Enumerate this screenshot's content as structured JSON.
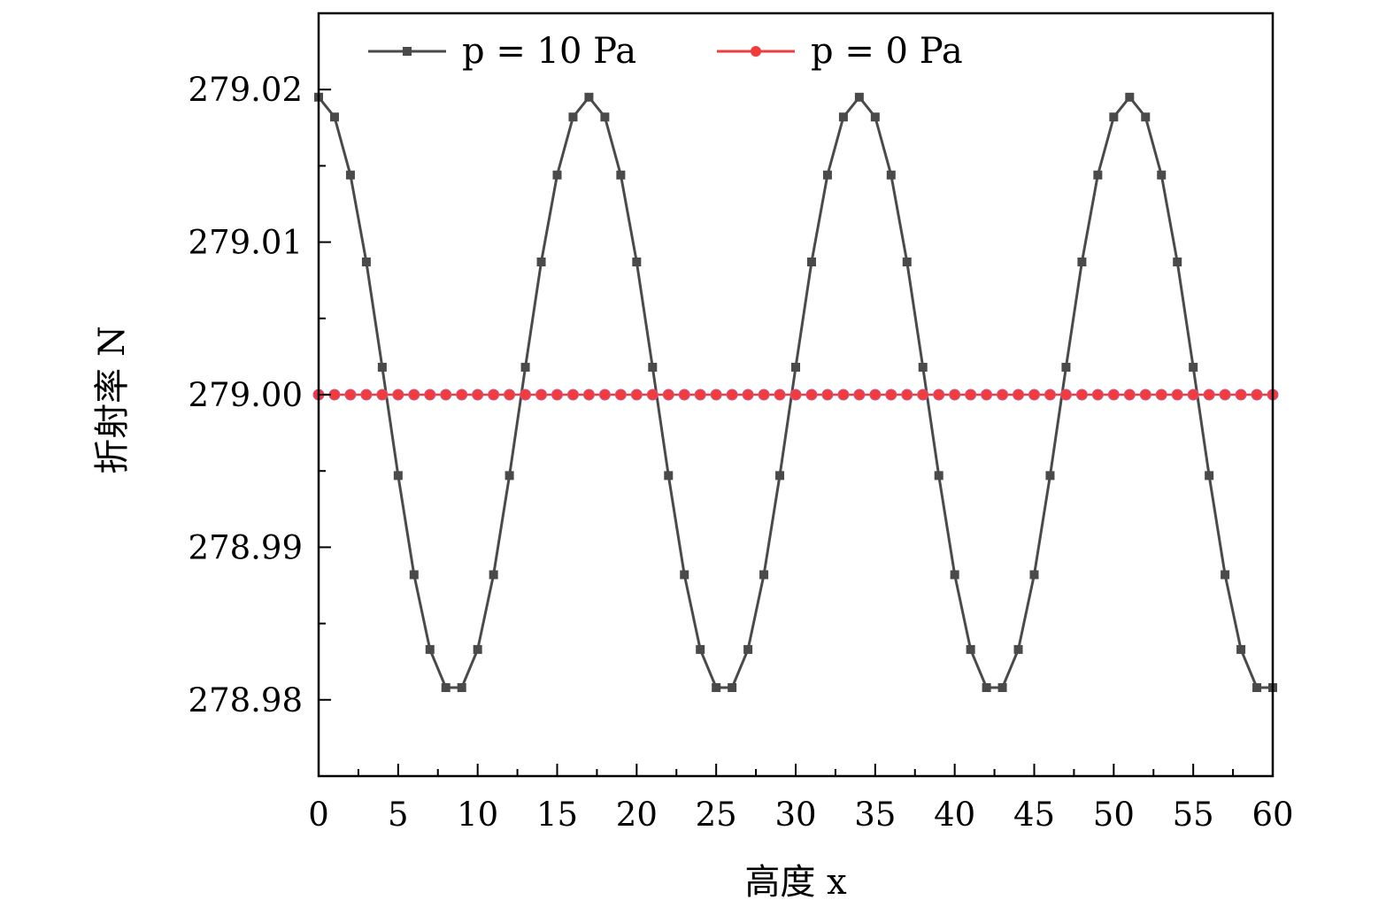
{
  "chart_data": {
    "type": "line",
    "xlabel": "高度 x",
    "ylabel": "折射率 N",
    "xlim": [
      0,
      60
    ],
    "ylim": [
      278.975,
      279.025
    ],
    "x_ticks": [
      0,
      5,
      10,
      15,
      20,
      25,
      30,
      35,
      40,
      45,
      50,
      55,
      60
    ],
    "x_tick_labels": [
      "0",
      "5",
      "10",
      "15",
      "20",
      "25",
      "30",
      "35",
      "40",
      "45",
      "50",
      "55",
      "60"
    ],
    "y_ticks": [
      278.98,
      278.99,
      279.0,
      279.01,
      279.02
    ],
    "y_tick_labels": [
      "278.98",
      "278.99",
      "279.00",
      "279.01",
      "279.02"
    ],
    "grid": false,
    "legend_position": "top",
    "x": [
      0,
      1,
      2,
      3,
      4,
      5,
      6,
      7,
      8,
      9,
      10,
      11,
      12,
      13,
      14,
      15,
      16,
      17,
      18,
      19,
      20,
      21,
      22,
      23,
      24,
      25,
      26,
      27,
      28,
      29,
      30,
      31,
      32,
      33,
      34,
      35,
      36,
      37,
      38,
      39,
      40,
      41,
      42,
      43,
      44,
      45,
      46,
      47,
      48,
      49,
      50,
      51,
      52,
      53,
      54,
      55,
      56,
      57,
      58,
      59,
      60
    ],
    "series": [
      {
        "name": "p = 10 Pa",
        "color": "#4a4a4a",
        "marker": "square",
        "values": [
          279.0195,
          279.0182,
          279.0144,
          279.0087,
          279.0018,
          278.9947,
          278.9882,
          278.9833,
          278.9808,
          278.9808,
          278.9833,
          278.9882,
          278.9947,
          279.0018,
          279.0087,
          279.0144,
          279.0182,
          279.0195,
          279.0182,
          279.0144,
          279.0087,
          279.0018,
          278.9947,
          278.9882,
          278.9833,
          278.9808,
          278.9808,
          278.9833,
          278.9882,
          278.9947,
          279.0018,
          279.0087,
          279.0144,
          279.0182,
          279.0195,
          279.0182,
          279.0144,
          279.0087,
          279.0018,
          278.9947,
          278.9882,
          278.9833,
          278.9808,
          278.9808,
          278.9833,
          278.9882,
          278.9947,
          279.0018,
          279.0087,
          279.0144,
          279.0182,
          279.0195,
          279.0182,
          279.0144,
          279.0087,
          279.0018,
          278.9947,
          278.9882,
          278.9833,
          278.9808,
          278.9808
        ]
      },
      {
        "name": "p = 0 Pa",
        "color": "#f03c3c",
        "marker": "circle",
        "values": [
          279.0,
          279.0,
          279.0,
          279.0,
          279.0,
          279.0,
          279.0,
          279.0,
          279.0,
          279.0,
          279.0,
          279.0,
          279.0,
          279.0,
          279.0,
          279.0,
          279.0,
          279.0,
          279.0,
          279.0,
          279.0,
          279.0,
          279.0,
          279.0,
          279.0,
          279.0,
          279.0,
          279.0,
          279.0,
          279.0,
          279.0,
          279.0,
          279.0,
          279.0,
          279.0,
          279.0,
          279.0,
          279.0,
          279.0,
          279.0,
          279.0,
          279.0,
          279.0,
          279.0,
          279.0,
          279.0,
          279.0,
          279.0,
          279.0,
          279.0,
          279.0,
          279.0,
          279.0,
          279.0,
          279.0,
          279.0,
          279.0,
          279.0,
          279.0,
          279.0,
          279.0
        ]
      }
    ]
  }
}
